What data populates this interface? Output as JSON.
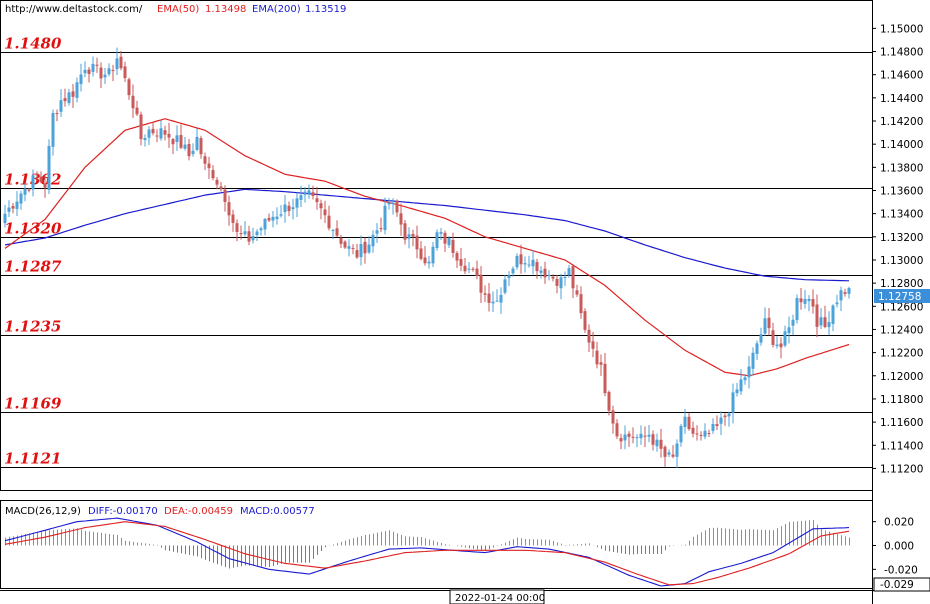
{
  "header": {
    "url": "http://www.deltastock.com/",
    "ema50_label": "EMA(50)",
    "ema50_value": "1.13498",
    "ema200_label": "EMA(200)",
    "ema200_value": "1.13519"
  },
  "macd_header": {
    "name": "MACD(26,12,9)",
    "diff": "DIFF:-0.00170",
    "dea": "DEA:-0.00459",
    "macd": "MACD:0.00577"
  },
  "time_label": "2022-01-24 00:00",
  "current_price": "1.12758",
  "macd_current": "-0.029",
  "colors": {
    "bull": "#4da3d9",
    "bear": "#c85a5a",
    "ema50": "#e02020",
    "ema200": "#1a1ad0",
    "level_text": "#e01010",
    "price_tag": "#3b8fd9"
  },
  "chart_data": {
    "type": "candlestick",
    "price_axis": {
      "ylim": [
        1.111,
        1.1515
      ],
      "ticks": [
        "1.15000",
        "1.14800",
        "1.14600",
        "1.14400",
        "1.14200",
        "1.14000",
        "1.13800",
        "1.13600",
        "1.13400",
        "1.13200",
        "1.13000",
        "1.12800",
        "1.12600",
        "1.12400",
        "1.12200",
        "1.12000",
        "1.11800",
        "1.11600",
        "1.11400",
        "1.11200"
      ]
    },
    "levels": [
      {
        "label": "1.1480",
        "value": 1.148
      },
      {
        "label": "1.1362",
        "value": 1.1362
      },
      {
        "label": "1.1320",
        "value": 1.132
      },
      {
        "label": "1.1287",
        "value": 1.1287
      },
      {
        "label": "1.1235",
        "value": 1.1235
      },
      {
        "label": "1.1169",
        "value": 1.1169
      },
      {
        "label": "1.1121",
        "value": 1.1121
      }
    ],
    "close_anchors": [
      [
        0,
        1.134
      ],
      [
        4,
        1.1358
      ],
      [
        8,
        1.1372
      ],
      [
        10,
        1.1365
      ],
      [
        12,
        1.1425
      ],
      [
        14,
        1.1438
      ],
      [
        17,
        1.1445
      ],
      [
        20,
        1.1468
      ],
      [
        23,
        1.1462
      ],
      [
        26,
        1.146
      ],
      [
        28,
        1.1475
      ],
      [
        30,
        1.1455
      ],
      [
        32,
        1.1435
      ],
      [
        34,
        1.1405
      ],
      [
        36,
        1.1412
      ],
      [
        40,
        1.141
      ],
      [
        42,
        1.1405
      ],
      [
        44,
        1.14
      ],
      [
        46,
        1.139
      ],
      [
        48,
        1.1405
      ],
      [
        50,
        1.138
      ],
      [
        52,
        1.1375
      ],
      [
        55,
        1.1355
      ],
      [
        58,
        1.1322
      ],
      [
        61,
        1.1318
      ],
      [
        64,
        1.1328
      ],
      [
        67,
        1.1338
      ],
      [
        70,
        1.1345
      ],
      [
        73,
        1.135
      ],
      [
        76,
        1.1355
      ],
      [
        79,
        1.1343
      ],
      [
        82,
        1.1328
      ],
      [
        85,
        1.1312
      ],
      [
        88,
        1.1305
      ],
      [
        91,
        1.1315
      ],
      [
        94,
        1.1332
      ],
      [
        96,
        1.135
      ],
      [
        98,
        1.134
      ],
      [
        100,
        1.1322
      ],
      [
        103,
        1.1312
      ],
      [
        106,
        1.1296
      ],
      [
        108,
        1.1322
      ],
      [
        111,
        1.1315
      ],
      [
        114,
        1.13
      ],
      [
        117,
        1.1288
      ],
      [
        120,
        1.127
      ],
      [
        123,
        1.1265
      ],
      [
        125,
        1.1285
      ],
      [
        128,
        1.13
      ],
      [
        131,
        1.1302
      ],
      [
        134,
        1.1292
      ],
      [
        137,
        1.1285
      ],
      [
        139,
        1.1282
      ],
      [
        141,
        1.129
      ],
      [
        143,
        1.1265
      ],
      [
        145,
        1.1238
      ],
      [
        147,
        1.1225
      ],
      [
        149,
        1.1205
      ],
      [
        151,
        1.1175
      ],
      [
        153,
        1.115
      ],
      [
        155,
        1.1148
      ],
      [
        157,
        1.1148
      ],
      [
        159,
        1.1145
      ],
      [
        161,
        1.115
      ],
      [
        163,
        1.114
      ],
      [
        165,
        1.113
      ],
      [
        167,
        1.1128
      ],
      [
        168,
        1.1142
      ],
      [
        170,
        1.116
      ],
      [
        172,
        1.115
      ],
      [
        174,
        1.1145
      ],
      [
        176,
        1.115
      ],
      [
        178,
        1.1155
      ],
      [
        180,
        1.1165
      ],
      [
        182,
        1.118
      ],
      [
        184,
        1.1195
      ],
      [
        186,
        1.1205
      ],
      [
        188,
        1.1228
      ],
      [
        190,
        1.1245
      ],
      [
        192,
        1.1232
      ],
      [
        194,
        1.1225
      ],
      [
        196,
        1.124
      ],
      [
        198,
        1.1265
      ],
      [
        200,
        1.127
      ],
      [
        202,
        1.1262
      ],
      [
        203,
        1.1248
      ],
      [
        205,
        1.1242
      ],
      [
        207,
        1.1262
      ],
      [
        209,
        1.1272
      ],
      [
        211,
        1.12758
      ]
    ],
    "ema50_anchors": [
      [
        0,
        1.131
      ],
      [
        10,
        1.1335
      ],
      [
        20,
        1.138
      ],
      [
        30,
        1.1412
      ],
      [
        40,
        1.1422
      ],
      [
        50,
        1.1412
      ],
      [
        60,
        1.139
      ],
      [
        70,
        1.1374
      ],
      [
        80,
        1.1368
      ],
      [
        90,
        1.1355
      ],
      [
        100,
        1.1346
      ],
      [
        110,
        1.1336
      ],
      [
        120,
        1.132
      ],
      [
        130,
        1.131
      ],
      [
        140,
        1.13
      ],
      [
        150,
        1.1278
      ],
      [
        160,
        1.1248
      ],
      [
        170,
        1.1222
      ],
      [
        180,
        1.1203
      ],
      [
        186,
        1.12
      ],
      [
        193,
        1.1206
      ],
      [
        200,
        1.1215
      ],
      [
        211,
        1.1227
      ]
    ],
    "ema200_anchors": [
      [
        0,
        1.1313
      ],
      [
        10,
        1.1319
      ],
      [
        20,
        1.133
      ],
      [
        30,
        1.134
      ],
      [
        40,
        1.1348
      ],
      [
        50,
        1.1356
      ],
      [
        60,
        1.1361
      ],
      [
        70,
        1.1359
      ],
      [
        80,
        1.1356
      ],
      [
        90,
        1.1353
      ],
      [
        100,
        1.135
      ],
      [
        110,
        1.1347
      ],
      [
        120,
        1.1343
      ],
      [
        130,
        1.1339
      ],
      [
        140,
        1.1334
      ],
      [
        150,
        1.1325
      ],
      [
        160,
        1.1313
      ],
      [
        170,
        1.1302
      ],
      [
        180,
        1.1293
      ],
      [
        190,
        1.1286
      ],
      [
        200,
        1.1283
      ],
      [
        211,
        1.1282
      ]
    ],
    "macd_axis": {
      "ylim": [
        -0.034,
        0.034
      ],
      "ticks": [
        "0.020",
        "0.000",
        "-0.020"
      ]
    },
    "macd_diff_anchors": [
      [
        0,
        0.004
      ],
      [
        8,
        0.011
      ],
      [
        18,
        0.02
      ],
      [
        28,
        0.023
      ],
      [
        38,
        0.017
      ],
      [
        48,
        0.003
      ],
      [
        56,
        -0.011
      ],
      [
        66,
        -0.02
      ],
      [
        76,
        -0.024
      ],
      [
        86,
        -0.013
      ],
      [
        96,
        -0.003
      ],
      [
        104,
        -0.002
      ],
      [
        112,
        -0.004
      ],
      [
        120,
        -0.006
      ],
      [
        128,
        -0.001
      ],
      [
        136,
        -0.003
      ],
      [
        146,
        -0.01
      ],
      [
        156,
        -0.025
      ],
      [
        164,
        -0.034
      ],
      [
        170,
        -0.032
      ],
      [
        176,
        -0.022
      ],
      [
        184,
        -0.015
      ],
      [
        192,
        -0.006
      ],
      [
        202,
        0.014
      ],
      [
        211,
        0.015
      ]
    ],
    "macd_dea_anchors": [
      [
        0,
        0.001
      ],
      [
        10,
        0.007
      ],
      [
        20,
        0.015
      ],
      [
        30,
        0.02
      ],
      [
        40,
        0.016
      ],
      [
        50,
        0.005
      ],
      [
        60,
        -0.007
      ],
      [
        70,
        -0.015
      ],
      [
        80,
        -0.019
      ],
      [
        90,
        -0.013
      ],
      [
        100,
        -0.006
      ],
      [
        110,
        -0.004
      ],
      [
        120,
        -0.004
      ],
      [
        130,
        -0.004
      ],
      [
        140,
        -0.006
      ],
      [
        150,
        -0.014
      ],
      [
        158,
        -0.024
      ],
      [
        166,
        -0.033
      ],
      [
        172,
        -0.032
      ],
      [
        178,
        -0.027
      ],
      [
        186,
        -0.019
      ],
      [
        196,
        -0.007
      ],
      [
        204,
        0.008
      ],
      [
        211,
        0.012
      ]
    ]
  }
}
